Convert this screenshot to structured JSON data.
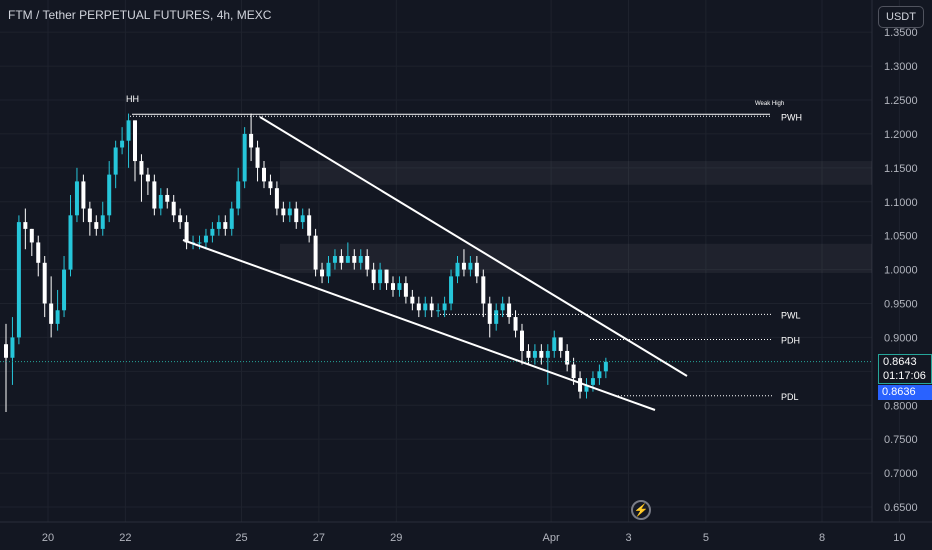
{
  "header": {
    "title": "FTM / Tether PERPETUAL FUTURES, 4h, MEXC",
    "currency": "USDT"
  },
  "price_tags": {
    "close": "0.8643",
    "countdown": "01:17:06",
    "bid": "0.8636"
  },
  "icons": {
    "bolt": "lightning-bolt-icon"
  },
  "colors": {
    "bg": "#131722",
    "up": "#26c6da",
    "down": "#ffffff",
    "grid": "#1e222d",
    "axis_text": "#b2b5be",
    "blue": "#2962ff"
  },
  "chart_data": {
    "type": "candlestick",
    "y_ticks": [
      "1.3500",
      "1.3000",
      "1.2500",
      "1.2000",
      "1.1500",
      "1.1000",
      "1.0500",
      "1.0000",
      "0.9500",
      "0.9000",
      "0.8500",
      "0.8000",
      "0.7500",
      "0.7000",
      "0.6500"
    ],
    "ylim": [
      0.62,
      1.37
    ],
    "x_ticks": [
      {
        "label": "20",
        "i": 0
      },
      {
        "label": "22",
        "i": 12
      },
      {
        "label": "25",
        "i": 30
      },
      {
        "label": "27",
        "i": 42
      },
      {
        "label": "29",
        "i": 54
      },
      {
        "label": "Apr",
        "i": 78
      },
      {
        "label": "3",
        "i": 90
      },
      {
        "label": "5",
        "i": 102
      },
      {
        "label": "8",
        "i": 120
      },
      {
        "label": "10",
        "i": 132
      }
    ],
    "candles": [
      [
        0.89,
        0.87,
        0.92,
        0.79
      ],
      [
        0.87,
        0.9,
        0.93,
        0.83
      ],
      [
        0.9,
        1.07,
        1.08,
        0.89
      ],
      [
        1.07,
        1.06,
        1.09,
        1.03
      ],
      [
        1.06,
        1.04,
        1.06,
        1.02
      ],
      [
        1.04,
        1.01,
        1.05,
        0.99
      ],
      [
        1.01,
        0.95,
        1.02,
        0.93
      ],
      [
        0.95,
        0.92,
        0.99,
        0.9
      ],
      [
        0.92,
        0.94,
        0.97,
        0.91
      ],
      [
        0.94,
        1.0,
        1.02,
        0.93
      ],
      [
        1.0,
        1.08,
        1.11,
        0.99
      ],
      [
        1.08,
        1.13,
        1.15,
        1.07
      ],
      [
        1.13,
        1.09,
        1.14,
        1.07
      ],
      [
        1.09,
        1.07,
        1.1,
        1.05
      ],
      [
        1.07,
        1.06,
        1.08,
        1.05
      ],
      [
        1.06,
        1.08,
        1.1,
        1.05
      ],
      [
        1.08,
        1.14,
        1.16,
        1.07
      ],
      [
        1.14,
        1.18,
        1.19,
        1.12
      ],
      [
        1.18,
        1.19,
        1.21,
        1.17
      ],
      [
        1.19,
        1.22,
        1.23,
        1.15
      ],
      [
        1.22,
        1.16,
        1.22,
        1.13
      ],
      [
        1.16,
        1.14,
        1.17,
        1.1
      ],
      [
        1.14,
        1.13,
        1.15,
        1.11
      ],
      [
        1.13,
        1.09,
        1.14,
        1.08
      ],
      [
        1.09,
        1.11,
        1.12,
        1.08
      ],
      [
        1.11,
        1.1,
        1.12,
        1.09
      ],
      [
        1.1,
        1.08,
        1.11,
        1.07
      ],
      [
        1.08,
        1.07,
        1.09,
        1.06
      ],
      [
        1.07,
        1.04,
        1.08,
        1.03
      ],
      [
        1.04,
        1.04,
        1.05,
        1.03
      ],
      [
        1.04,
        1.04,
        1.05,
        1.03
      ],
      [
        1.04,
        1.05,
        1.06,
        1.03
      ],
      [
        1.05,
        1.06,
        1.07,
        1.04
      ],
      [
        1.06,
        1.07,
        1.08,
        1.05
      ],
      [
        1.07,
        1.06,
        1.08,
        1.05
      ],
      [
        1.06,
        1.09,
        1.1,
        1.05
      ],
      [
        1.09,
        1.13,
        1.15,
        1.08
      ],
      [
        1.13,
        1.2,
        1.21,
        1.12
      ],
      [
        1.2,
        1.18,
        1.23,
        1.16
      ],
      [
        1.18,
        1.15,
        1.19,
        1.13
      ],
      [
        1.15,
        1.13,
        1.16,
        1.12
      ],
      [
        1.13,
        1.12,
        1.14,
        1.11
      ],
      [
        1.12,
        1.09,
        1.13,
        1.08
      ],
      [
        1.09,
        1.08,
        1.1,
        1.07
      ],
      [
        1.08,
        1.09,
        1.1,
        1.07
      ],
      [
        1.09,
        1.07,
        1.1,
        1.06
      ],
      [
        1.07,
        1.08,
        1.09,
        1.06
      ],
      [
        1.08,
        1.05,
        1.09,
        1.04
      ],
      [
        1.05,
        1.0,
        1.06,
        0.99
      ],
      [
        1.0,
        0.99,
        1.01,
        0.98
      ],
      [
        0.99,
        1.01,
        1.02,
        0.98
      ],
      [
        1.01,
        1.02,
        1.03,
        1.0
      ],
      [
        1.02,
        1.01,
        1.03,
        1.0
      ],
      [
        1.01,
        1.02,
        1.04,
        1.01
      ],
      [
        1.02,
        1.01,
        1.03,
        1.0
      ],
      [
        1.01,
        1.02,
        1.03,
        1.0
      ],
      [
        1.02,
        1.0,
        1.03,
        0.99
      ],
      [
        1.0,
        0.98,
        1.01,
        0.97
      ],
      [
        0.98,
        1.0,
        1.01,
        0.97
      ],
      [
        1.0,
        0.98,
        1.0,
        0.97
      ],
      [
        0.98,
        0.97,
        0.99,
        0.96
      ],
      [
        0.97,
        0.98,
        0.99,
        0.96
      ],
      [
        0.98,
        0.96,
        0.99,
        0.95
      ],
      [
        0.96,
        0.95,
        0.97,
        0.94
      ],
      [
        0.95,
        0.94,
        0.96,
        0.93
      ],
      [
        0.94,
        0.95,
        0.96,
        0.93
      ],
      [
        0.95,
        0.94,
        0.96,
        0.93
      ],
      [
        0.94,
        0.94,
        0.95,
        0.93
      ],
      [
        0.94,
        0.95,
        0.96,
        0.93
      ],
      [
        0.95,
        0.99,
        1.0,
        0.94
      ],
      [
        0.99,
        1.01,
        1.02,
        0.98
      ],
      [
        1.01,
        1.0,
        1.03,
        0.99
      ],
      [
        1.0,
        1.01,
        1.02,
        0.99
      ],
      [
        1.01,
        0.99,
        1.02,
        0.98
      ],
      [
        0.99,
        0.95,
        1.0,
        0.93
      ],
      [
        0.95,
        0.92,
        0.96,
        0.9
      ],
      [
        0.92,
        0.94,
        0.95,
        0.91
      ],
      [
        0.94,
        0.95,
        0.96,
        0.93
      ],
      [
        0.95,
        0.93,
        0.96,
        0.92
      ],
      [
        0.93,
        0.91,
        0.94,
        0.9
      ],
      [
        0.91,
        0.88,
        0.92,
        0.86
      ],
      [
        0.88,
        0.87,
        0.89,
        0.86
      ],
      [
        0.87,
        0.88,
        0.89,
        0.86
      ],
      [
        0.88,
        0.87,
        0.89,
        0.86
      ],
      [
        0.87,
        0.88,
        0.89,
        0.83
      ],
      [
        0.88,
        0.9,
        0.91,
        0.87
      ],
      [
        0.9,
        0.88,
        0.9,
        0.87
      ],
      [
        0.88,
        0.86,
        0.89,
        0.85
      ],
      [
        0.86,
        0.84,
        0.87,
        0.83
      ],
      [
        0.84,
        0.82,
        0.85,
        0.81
      ],
      [
        0.82,
        0.83,
        0.84,
        0.81
      ],
      [
        0.83,
        0.84,
        0.85,
        0.82
      ],
      [
        0.84,
        0.85,
        0.86,
        0.83
      ],
      [
        0.85,
        0.864,
        0.87,
        0.84
      ]
    ],
    "levels": [
      {
        "label": "PWH",
        "value": 1.226
      },
      {
        "label": "PWL",
        "value": 0.934
      },
      {
        "label": "PDH",
        "value": 0.897
      },
      {
        "label": "PDL",
        "value": 0.814
      },
      {
        "label": "current",
        "value": 0.8643
      }
    ],
    "annotations": [
      {
        "text": "HH",
        "value": 1.265
      },
      {
        "text": "Weak High",
        "value": 1.243
      }
    ],
    "zones": [
      [
        1.125,
        1.16
      ],
      [
        0.995,
        1.038
      ]
    ]
  }
}
